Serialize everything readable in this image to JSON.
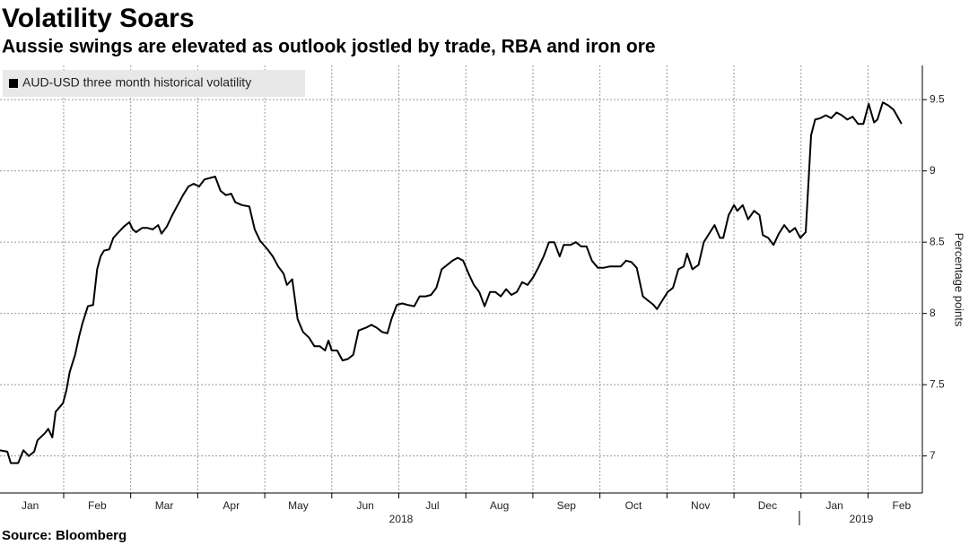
{
  "chart_data": {
    "type": "line",
    "title": "Volatility Soars",
    "subtitle": "Aussie swings are elevated as outlook jostled by trade, RBA and iron ore",
    "y_axis_label": "Percentage points",
    "source": "Source: Bloomberg",
    "year_labels": [
      "2018",
      "2019"
    ],
    "legend_position": "upper left",
    "grid": true,
    "xlim": [
      0.05,
      13.81
    ],
    "ylim": [
      6.74,
      9.74
    ],
    "yticks": [
      7.0,
      7.5,
      8.0,
      8.5,
      9.0,
      9.5
    ],
    "xticks": [
      {
        "value": 0,
        "label": "Jan"
      },
      {
        "value": 1,
        "label": "Feb"
      },
      {
        "value": 2,
        "label": "Mar"
      },
      {
        "value": 3,
        "label": "Apr"
      },
      {
        "value": 4,
        "label": "May"
      },
      {
        "value": 5,
        "label": "Jun"
      },
      {
        "value": 6,
        "label": "Jul"
      },
      {
        "value": 7,
        "label": "Aug"
      },
      {
        "value": 8,
        "label": "Sep"
      },
      {
        "value": 9,
        "label": "Oct"
      },
      {
        "value": 10,
        "label": "Nov"
      },
      {
        "value": 11,
        "label": "Dec"
      },
      {
        "value": 12,
        "label": "Jan"
      },
      {
        "value": 13,
        "label": "Feb"
      }
    ],
    "x": [
      0.05,
      0.16,
      0.21,
      0.32,
      0.4,
      0.48,
      0.56,
      0.61,
      0.72,
      0.77,
      0.83,
      0.88,
      0.99,
      1.04,
      1.09,
      1.17,
      1.23,
      1.28,
      1.36,
      1.44,
      1.5,
      1.55,
      1.6,
      1.68,
      1.74,
      1.82,
      1.9,
      1.98,
      2.03,
      2.08,
      2.17,
      2.25,
      2.33,
      2.41,
      2.46,
      2.54,
      2.62,
      2.7,
      2.78,
      2.86,
      2.94,
      3.02,
      3.1,
      3.18,
      3.26,
      3.34,
      3.42,
      3.5,
      3.56,
      3.66,
      3.77,
      3.85,
      3.93,
      4.04,
      4.12,
      4.2,
      4.28,
      4.33,
      4.41,
      4.49,
      4.57,
      4.66,
      4.74,
      4.82,
      4.9,
      4.95,
      5.0,
      5.08,
      5.16,
      5.24,
      5.32,
      5.4,
      5.51,
      5.59,
      5.67,
      5.75,
      5.83,
      5.89,
      5.97,
      6.05,
      6.13,
      6.23,
      6.31,
      6.4,
      6.48,
      6.56,
      6.64,
      6.72,
      6.8,
      6.88,
      6.96,
      7.04,
      7.12,
      7.2,
      7.28,
      7.36,
      7.44,
      7.52,
      7.6,
      7.68,
      7.76,
      7.84,
      7.92,
      8.0,
      8.08,
      8.16,
      8.24,
      8.32,
      8.4,
      8.46,
      8.56,
      8.64,
      8.72,
      8.8,
      8.88,
      8.97,
      9.05,
      9.15,
      9.23,
      9.31,
      9.39,
      9.47,
      9.55,
      9.64,
      9.72,
      9.8,
      9.85,
      9.93,
      10.01,
      10.09,
      10.17,
      10.25,
      10.3,
      10.38,
      10.47,
      10.55,
      10.63,
      10.71,
      10.79,
      10.84,
      10.92,
      11.0,
      11.05,
      11.13,
      11.21,
      11.3,
      11.38,
      11.43,
      11.51,
      11.59,
      11.67,
      11.75,
      11.83,
      11.91,
      11.99,
      12.07,
      12.15,
      12.21,
      12.29,
      12.37,
      12.45,
      12.53,
      12.61,
      12.69,
      12.77,
      12.85,
      12.93,
      13.01,
      13.09,
      13.14,
      13.22,
      13.3,
      13.38,
      13.44,
      13.5
    ],
    "series": [
      {
        "name": "AUD-USD three month historical volatility",
        "color": "#000000",
        "values": [
          7.04,
          7.03,
          6.95,
          6.95,
          7.04,
          7.0,
          7.03,
          7.11,
          7.16,
          7.19,
          7.13,
          7.31,
          7.37,
          7.46,
          7.59,
          7.71,
          7.84,
          7.93,
          8.05,
          8.06,
          8.31,
          8.4,
          8.44,
          8.45,
          8.53,
          8.57,
          8.61,
          8.64,
          8.59,
          8.57,
          8.6,
          8.6,
          8.59,
          8.62,
          8.56,
          8.61,
          8.69,
          8.76,
          8.83,
          8.89,
          8.91,
          8.89,
          8.94,
          8.95,
          8.96,
          8.86,
          8.83,
          8.84,
          8.78,
          8.76,
          8.75,
          8.59,
          8.51,
          8.45,
          8.4,
          8.33,
          8.28,
          8.2,
          8.24,
          7.96,
          7.87,
          7.83,
          7.77,
          7.77,
          7.74,
          7.81,
          7.74,
          7.74,
          7.67,
          7.68,
          7.71,
          7.88,
          7.9,
          7.92,
          7.9,
          7.87,
          7.86,
          7.96,
          8.06,
          8.07,
          8.06,
          8.05,
          8.12,
          8.12,
          8.13,
          8.18,
          8.31,
          8.34,
          8.37,
          8.39,
          8.37,
          8.28,
          8.2,
          8.15,
          8.05,
          8.15,
          8.15,
          8.12,
          8.17,
          8.13,
          8.15,
          8.22,
          8.2,
          8.25,
          8.32,
          8.4,
          8.5,
          8.5,
          8.4,
          8.48,
          8.48,
          8.5,
          8.47,
          8.47,
          8.37,
          8.32,
          8.32,
          8.33,
          8.33,
          8.33,
          8.37,
          8.36,
          8.32,
          8.12,
          8.09,
          8.06,
          8.03,
          8.09,
          8.15,
          8.18,
          8.31,
          8.33,
          8.42,
          8.31,
          8.34,
          8.5,
          8.56,
          8.62,
          8.53,
          8.53,
          8.69,
          8.76,
          8.72,
          8.76,
          8.66,
          8.72,
          8.69,
          8.55,
          8.53,
          8.48,
          8.56,
          8.62,
          8.57,
          8.6,
          8.53,
          8.57,
          9.25,
          9.36,
          9.37,
          9.39,
          9.37,
          9.41,
          9.39,
          9.36,
          9.38,
          9.33,
          9.33,
          9.47,
          9.34,
          9.36,
          9.48,
          9.46,
          9.43,
          9.38,
          9.33
        ]
      }
    ]
  }
}
